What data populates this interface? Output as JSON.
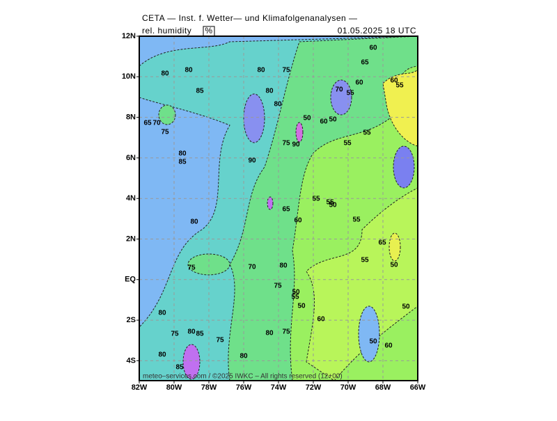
{
  "header": {
    "title": "CETA — Inst. f. Wetter— und Klimafolgenanalysen —",
    "variable": "rel. humidity",
    "unit": "%",
    "datetime": "01.05.2025  18 UTC"
  },
  "map": {
    "lat_ticks": [
      "12N",
      "10N",
      "8N",
      "6N",
      "4N",
      "2N",
      "EQ",
      "2S",
      "4S"
    ],
    "lon_ticks": [
      "82W",
      "80W",
      "78W",
      "76W",
      "74W",
      "72W",
      "70W",
      "68W",
      "66W"
    ],
    "contour_labels": [
      "80",
      "80",
      "85",
      "80",
      "75",
      "80",
      "80",
      "65",
      "70",
      "75",
      "80",
      "85",
      "90",
      "75",
      "90",
      "50",
      "60",
      "50",
      "55",
      "55",
      "70",
      "55",
      "60",
      "65",
      "60",
      "55",
      "60",
      "55",
      "55",
      "50",
      "65",
      "60",
      "55",
      "80",
      "75",
      "70",
      "80",
      "75",
      "50",
      "55",
      "50",
      "80",
      "75",
      "80",
      "85",
      "75",
      "80",
      "75",
      "80",
      "85",
      "80",
      "60",
      "50",
      "50",
      "55",
      "65",
      "50",
      "60"
    ],
    "copyright": "meteo–services.com / ©2025 IWKC – All rights reserved (12+00)"
  }
}
